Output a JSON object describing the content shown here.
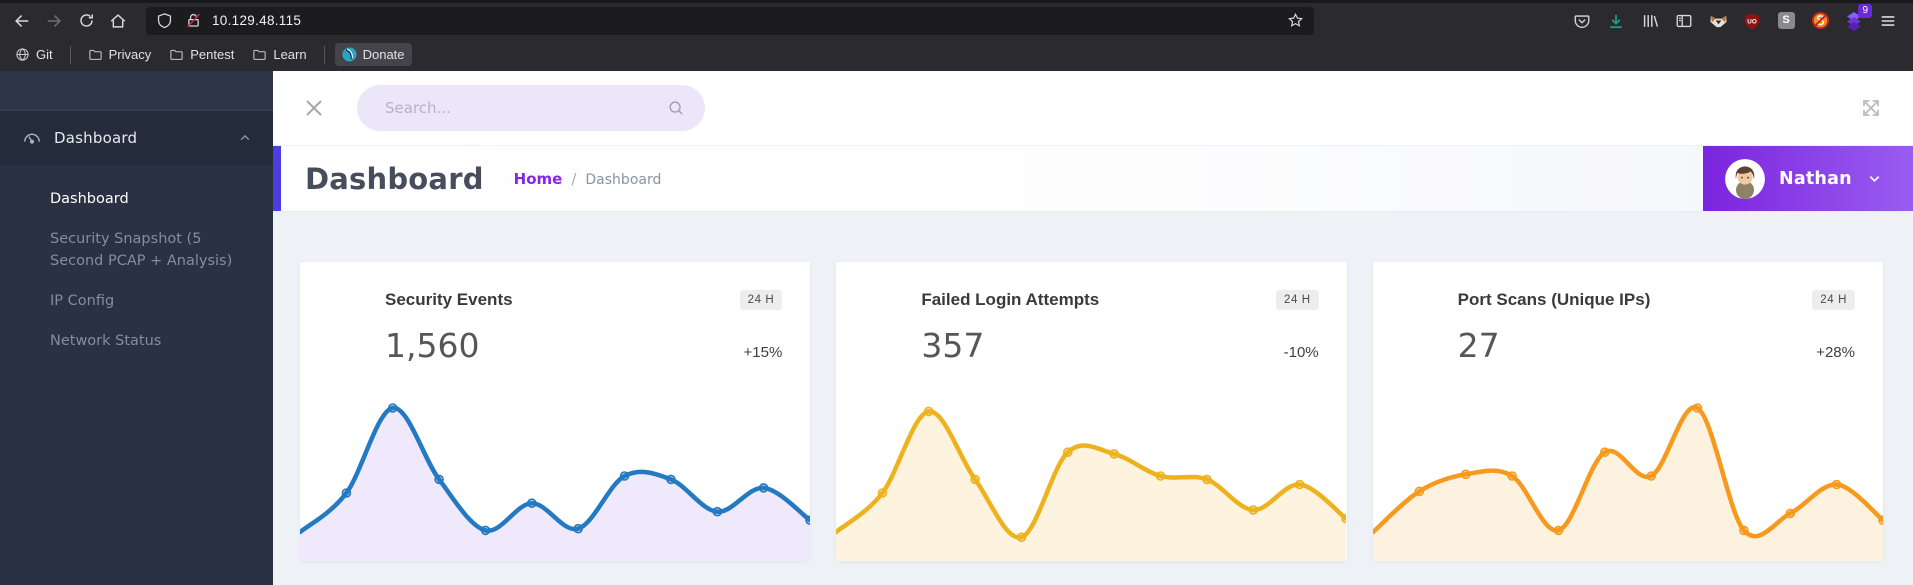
{
  "browser": {
    "url": "10.129.48.115",
    "toolbar": {
      "icons": [
        "back",
        "forward",
        "reload",
        "home",
        "shield",
        "insecure-lock",
        "bookmark-star",
        "pocket",
        "downloads",
        "library",
        "sidebar-toggle",
        "foxyproxy-extension",
        "ublock-extension",
        "s-extension",
        "noscript-extension",
        "wappalyzer-extension",
        "menu"
      ],
      "wappalyzer_badge": "9",
      "s_extension_label": "S"
    },
    "bookmarks_bar": {
      "items": [
        {
          "label": "Git",
          "icon": "globe"
        },
        {
          "label": "Privacy",
          "icon": "folder"
        },
        {
          "label": "Pentest",
          "icon": "folder"
        },
        {
          "label": "Learn",
          "icon": "folder"
        },
        {
          "label": "Donate",
          "icon": "donate-globe"
        }
      ]
    }
  },
  "sidebar": {
    "section": {
      "label": "Dashboard"
    },
    "items": [
      {
        "label": "Dashboard",
        "active": true
      },
      {
        "label": "Security Snapshot (5 Second PCAP + Analysis)",
        "active": false
      },
      {
        "label": "IP Config",
        "active": false
      },
      {
        "label": "Network Status",
        "active": false
      }
    ]
  },
  "topbar": {
    "search_placeholder": "Search..."
  },
  "header": {
    "title": "Dashboard",
    "breadcrumb": {
      "home": "Home",
      "separator": "/",
      "current": "Dashboard"
    },
    "user": {
      "name": "Nathan"
    }
  },
  "cards": [
    {
      "title": "Security Events",
      "period": "24 H",
      "value": "1,560",
      "delta": "+15%"
    },
    {
      "title": "Failed Login Attempts",
      "period": "24 H",
      "value": "357",
      "delta": "-10%"
    },
    {
      "title": "Port Scans (Unique IPs)",
      "period": "24 H",
      "value": "27",
      "delta": "+28%"
    }
  ],
  "chart_data": [
    {
      "type": "area",
      "series_name": "Security Events",
      "smooth": true,
      "markers": true,
      "axes_hidden": true,
      "grid": false,
      "ylim": [
        0,
        100
      ],
      "values": [
        17,
        40,
        90,
        48,
        18,
        34,
        19,
        50,
        48,
        29,
        43,
        24
      ],
      "line_color": "#2379c2",
      "fill_color": "#f0e9fb"
    },
    {
      "type": "area",
      "series_name": "Failed Login Attempts",
      "smooth": true,
      "markers": true,
      "axes_hidden": true,
      "grid": false,
      "ylim": [
        0,
        100
      ],
      "values": [
        17,
        40,
        88,
        48,
        14,
        64,
        63,
        50,
        48,
        30,
        45,
        25
      ],
      "line_color": "#edb21e",
      "fill_color": "#fdf3de"
    },
    {
      "type": "area",
      "series_name": "Port Scans (Unique IPs)",
      "smooth": true,
      "markers": true,
      "axes_hidden": true,
      "grid": false,
      "ylim": [
        0,
        100
      ],
      "values": [
        17,
        41,
        51,
        50,
        18,
        64,
        50,
        90,
        18,
        28,
        45,
        24
      ],
      "line_color": "#f7991d",
      "fill_color": "#fdf2e0"
    }
  ],
  "colors": {
    "accent_bar": "#4b3ee0",
    "breadcrumb_link": "#8726e9",
    "user_chip_gradient_start": "#7b24df",
    "user_chip_gradient_end": "#9a5cf0",
    "sidebar_bg": "#2a3143",
    "page_bg": "#eef1f6",
    "toolbar_bg": "#2b2a2e",
    "downloads_icon": "#17a689"
  }
}
